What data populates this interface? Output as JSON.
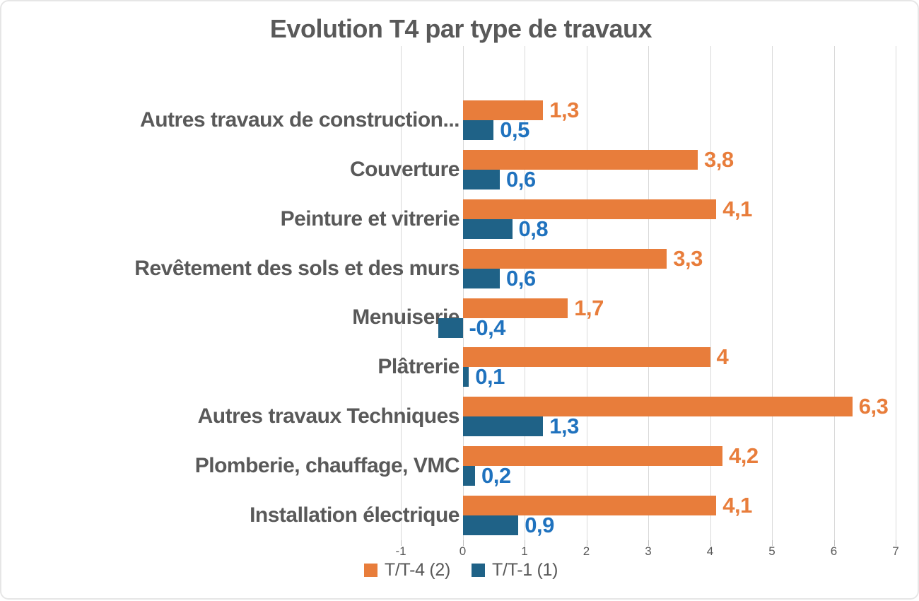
{
  "chart_data": {
    "type": "bar",
    "orientation": "horizontal",
    "title": "Evolution T4 par type de travaux",
    "categories": [
      "Autres travaux de construction...",
      "Couverture",
      "Peinture et vitrerie",
      "Revêtement des sols et des murs",
      "Menuiserie",
      "Plâtrerie",
      "Autres travaux Techniques",
      "Plomberie, chauffage, VMC",
      "Installation électrique"
    ],
    "series": [
      {
        "name": "T/T-4 (2)",
        "color": "#E87D3B",
        "label_color": "#E87D3B",
        "values": [
          1.3,
          3.8,
          4.1,
          3.3,
          1.7,
          4,
          6.3,
          4.2,
          4.1
        ],
        "labels": [
          "1,3",
          "3,8",
          "4,1",
          "3,3",
          "1,7",
          "4",
          "6,3",
          "4,2",
          "4,1"
        ]
      },
      {
        "name": "T/T-1 (1)",
        "color": "#1F6287",
        "label_color": "#1F72BE",
        "values": [
          0.5,
          0.6,
          0.8,
          0.6,
          -0.4,
          0.1,
          1.3,
          0.2,
          0.9
        ],
        "labels": [
          "0,5",
          "0,6",
          "0,8",
          "0,6",
          "-0,4",
          "0,1",
          "1,3",
          "0,2",
          "0,9"
        ]
      }
    ],
    "xlim": [
      -1,
      7
    ],
    "xticks": [
      -1,
      0,
      1,
      2,
      3,
      4,
      5,
      6,
      7
    ],
    "xtick_labels": [
      "-1",
      "0",
      "1",
      "2",
      "3",
      "4",
      "5",
      "6",
      "7"
    ],
    "grid": true,
    "legend_position": "bottom",
    "decimal_separator": ","
  },
  "colors": {
    "text": "#595959",
    "gridline": "#D9D9D9",
    "tick": "#BFBFBF",
    "background": "#FFFFFF",
    "border": "#E6E6E6"
  }
}
